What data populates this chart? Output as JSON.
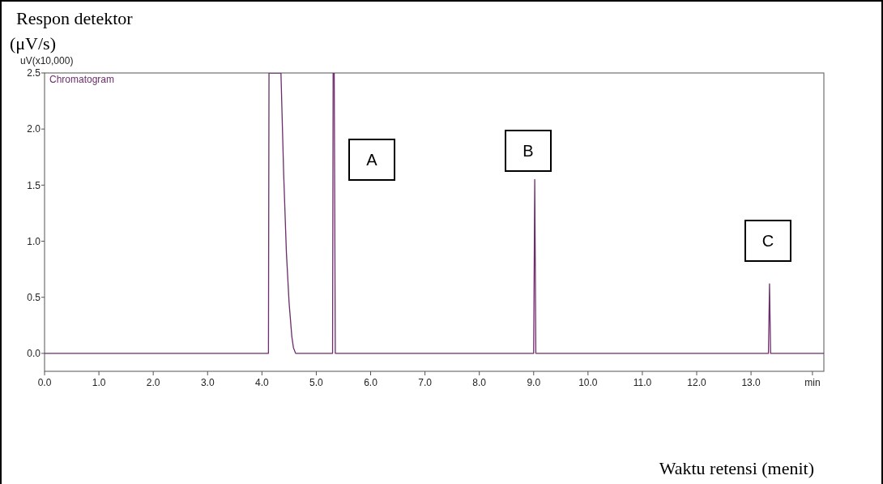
{
  "chart_data": {
    "type": "line",
    "ylabel": "Respon detektor\n(μV/s)",
    "xlabel": "Waktu retensi (menit)",
    "annotations": [
      "uV(x10,000)",
      "A",
      "B",
      "C"
    ],
    "series": [
      {
        "name": "Chromatogram",
        "color": "#6b2d6b",
        "x": [
          0,
          4.12,
          4.13,
          4.35,
          4.4,
          4.45,
          4.5,
          4.55,
          4.58,
          4.62,
          5.3,
          5.31,
          5.33,
          5.35,
          9.0,
          9.02,
          9.04,
          13.32,
          13.34,
          13.36,
          14.34
        ],
        "values": [
          0,
          0,
          2.5,
          2.5,
          1.6,
          0.9,
          0.45,
          0.15,
          0.05,
          0,
          0,
          2.5,
          2.5,
          0,
          0,
          1.55,
          0,
          0,
          0.62,
          0,
          0
        ]
      }
    ],
    "xlim": [
      0,
      14.34
    ],
    "ylim": [
      -0.16,
      2.5
    ],
    "xticks": [
      {
        "value": 0,
        "label": "0.0"
      },
      {
        "value": 1,
        "label": "1.0"
      },
      {
        "value": 2,
        "label": "2.0"
      },
      {
        "value": 3,
        "label": "3.0"
      },
      {
        "value": 4,
        "label": "4.0"
      },
      {
        "value": 5,
        "label": "5.0"
      },
      {
        "value": 6,
        "label": "6.0"
      },
      {
        "value": 7,
        "label": "7.0"
      },
      {
        "value": 8,
        "label": "8.0"
      },
      {
        "value": 9,
        "label": "9.0"
      },
      {
        "value": 10,
        "label": "10.0"
      },
      {
        "value": 11,
        "label": "11.0"
      },
      {
        "value": 12,
        "label": "12.0"
      },
      {
        "value": 13,
        "label": "13.0"
      },
      {
        "value": 14.13,
        "label": "min"
      }
    ],
    "yticks": [
      {
        "value": 0,
        "label": "0.0"
      },
      0.5,
      {
        "value": 1,
        "label": "1.0"
      },
      1.5,
      {
        "value": 2,
        "label": "2.0"
      },
      2.5
    ],
    "grid": false,
    "legend": "top left",
    "marker": "none",
    "line_style": "solid"
  }
}
